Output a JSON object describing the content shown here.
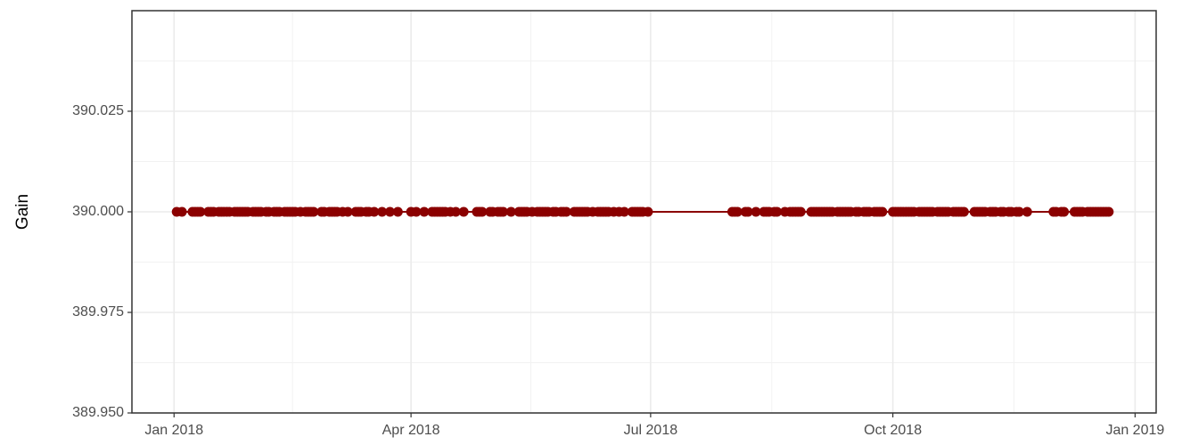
{
  "chart_data": {
    "type": "line",
    "y_label": "Gain",
    "color": "#8b0000",
    "grid": true,
    "x": [
      "2018-01-02",
      "2018-01-04",
      "2018-01-08",
      "2018-01-09",
      "2018-01-10",
      "2018-01-11",
      "2018-01-14",
      "2018-01-15",
      "2018-01-16",
      "2018-01-18",
      "2018-01-19",
      "2018-01-20",
      "2018-01-21",
      "2018-01-22",
      "2018-01-24",
      "2018-01-25",
      "2018-01-26",
      "2018-01-27",
      "2018-01-28",
      "2018-01-29",
      "2018-01-31",
      "2018-02-01",
      "2018-02-02",
      "2018-02-03",
      "2018-02-05",
      "2018-02-06",
      "2018-02-08",
      "2018-02-09",
      "2018-02-10",
      "2018-02-12",
      "2018-02-13",
      "2018-02-14",
      "2018-02-15",
      "2018-02-16",
      "2018-02-18",
      "2018-02-20",
      "2018-02-21",
      "2018-02-22",
      "2018-02-23",
      "2018-02-26",
      "2018-02-27",
      "2018-03-01",
      "2018-03-02",
      "2018-03-03",
      "2018-03-04",
      "2018-03-06",
      "2018-03-08",
      "2018-03-11",
      "2018-03-12",
      "2018-03-13",
      "2018-03-15",
      "2018-03-16",
      "2018-03-18",
      "2018-03-21",
      "2018-03-24",
      "2018-03-27",
      "2018-04-01",
      "2018-04-03",
      "2018-04-06",
      "2018-04-09",
      "2018-04-10",
      "2018-04-11",
      "2018-04-12",
      "2018-04-13",
      "2018-04-14",
      "2018-04-16",
      "2018-04-18",
      "2018-04-21",
      "2018-04-26",
      "2018-04-27",
      "2018-04-28",
      "2018-05-01",
      "2018-05-02",
      "2018-05-04",
      "2018-05-05",
      "2018-05-06",
      "2018-05-09",
      "2018-05-12",
      "2018-05-13",
      "2018-05-14",
      "2018-05-15",
      "2018-05-17",
      "2018-05-19",
      "2018-05-20",
      "2018-05-21",
      "2018-05-22",
      "2018-05-23",
      "2018-05-25",
      "2018-05-26",
      "2018-05-28",
      "2018-05-29",
      "2018-05-30",
      "2018-06-02",
      "2018-06-03",
      "2018-06-04",
      "2018-06-05",
      "2018-06-06",
      "2018-06-07",
      "2018-06-09",
      "2018-06-11",
      "2018-06-12",
      "2018-06-13",
      "2018-06-14",
      "2018-06-15",
      "2018-06-17",
      "2018-06-19",
      "2018-06-21",
      "2018-06-24",
      "2018-06-25",
      "2018-06-26",
      "2018-06-27",
      "2018-06-28",
      "2018-06-30",
      "2018-08-01",
      "2018-08-02",
      "2018-08-03",
      "2018-08-06",
      "2018-08-07",
      "2018-08-10",
      "2018-08-13",
      "2018-08-14",
      "2018-08-15",
      "2018-08-17",
      "2018-08-18",
      "2018-08-21",
      "2018-08-23",
      "2018-08-24",
      "2018-08-25",
      "2018-08-26",
      "2018-08-27",
      "2018-08-31",
      "2018-09-01",
      "2018-09-02",
      "2018-09-03",
      "2018-09-04",
      "2018-09-05",
      "2018-09-06",
      "2018-09-07",
      "2018-09-08",
      "2018-09-10",
      "2018-09-11",
      "2018-09-12",
      "2018-09-13",
      "2018-09-14",
      "2018-09-15",
      "2018-09-17",
      "2018-09-18",
      "2018-09-20",
      "2018-09-21",
      "2018-09-22",
      "2018-09-24",
      "2018-09-25",
      "2018-09-26",
      "2018-09-27",
      "2018-10-01",
      "2018-10-02",
      "2018-10-03",
      "2018-10-04",
      "2018-10-05",
      "2018-10-06",
      "2018-10-07",
      "2018-10-08",
      "2018-10-09",
      "2018-10-11",
      "2018-10-12",
      "2018-10-13",
      "2018-10-14",
      "2018-10-15",
      "2018-10-16",
      "2018-10-18",
      "2018-10-19",
      "2018-10-20",
      "2018-10-21",
      "2018-10-22",
      "2018-10-24",
      "2018-10-25",
      "2018-10-26",
      "2018-10-27",
      "2018-10-28",
      "2018-11-01",
      "2018-11-02",
      "2018-11-03",
      "2018-11-04",
      "2018-11-05",
      "2018-11-07",
      "2018-11-08",
      "2018-11-09",
      "2018-11-11",
      "2018-11-12",
      "2018-11-14",
      "2018-11-15",
      "2018-11-17",
      "2018-11-18",
      "2018-11-21",
      "2018-12-01",
      "2018-12-02",
      "2018-12-04",
      "2018-12-05",
      "2018-12-09",
      "2018-12-10",
      "2018-12-11",
      "2018-12-12",
      "2018-12-14",
      "2018-12-15",
      "2018-12-16",
      "2018-12-17",
      "2018-12-18",
      "2018-12-19",
      "2018-12-20",
      "2018-12-21",
      "2018-12-22"
    ],
    "values": [
      390,
      390,
      390,
      390,
      390,
      390,
      390,
      390,
      390,
      390,
      390,
      390,
      390,
      390,
      390,
      390,
      390,
      390,
      390,
      390,
      390,
      390,
      390,
      390,
      390,
      390,
      390,
      390,
      390,
      390,
      390,
      390,
      390,
      390,
      390,
      390,
      390,
      390,
      390,
      390,
      390,
      390,
      390,
      390,
      390,
      390,
      390,
      390,
      390,
      390,
      390,
      390,
      390,
      390,
      390,
      390,
      390,
      390,
      390,
      390,
      390,
      390,
      390,
      390,
      390,
      390,
      390,
      390,
      390,
      390,
      390,
      390,
      390,
      390,
      390,
      390,
      390,
      390,
      390,
      390,
      390,
      390,
      390,
      390,
      390,
      390,
      390,
      390,
      390,
      390,
      390,
      390,
      390,
      390,
      390,
      390,
      390,
      390,
      390,
      390,
      390,
      390,
      390,
      390,
      390,
      390,
      390,
      390,
      390,
      390,
      390,
      390,
      390,
      390,
      390,
      390,
      390,
      390,
      390,
      390,
      390,
      390,
      390,
      390,
      390,
      390,
      390,
      390,
      390,
      390,
      390,
      390,
      390,
      390,
      390,
      390,
      390,
      390,
      390,
      390,
      390,
      390,
      390,
      390,
      390,
      390,
      390,
      390,
      390,
      390,
      390,
      390,
      390,
      390,
      390,
      390,
      390,
      390,
      390,
      390,
      390,
      390,
      390,
      390,
      390,
      390,
      390,
      390,
      390,
      390,
      390,
      390,
      390,
      390,
      390,
      390,
      390,
      390,
      390,
      390,
      390,
      390,
      390,
      390,
      390,
      390,
      390,
      390,
      390,
      390,
      390,
      390,
      390,
      390,
      390,
      390,
      390,
      390,
      390,
      390,
      390,
      390,
      390,
      390,
      390,
      390,
      390,
      390,
      390,
      390,
      390
    ],
    "xlim": [
      "2017-12-16",
      "2019-01-09"
    ],
    "xticks": [
      {
        "value": "2018-01-01",
        "label": "Jan 2018"
      },
      {
        "value": "2018-04-01",
        "label": "Apr 2018"
      },
      {
        "value": "2018-07-01",
        "label": "Jul 2018"
      },
      {
        "value": "2018-10-01",
        "label": "Oct 2018"
      },
      {
        "value": "2019-01-01",
        "label": "Jan 2019"
      }
    ],
    "ylim": [
      389.95,
      390.05
    ],
    "yticks": [
      {
        "value": 389.95,
        "label": "389.950"
      },
      389.975,
      {
        "value": 390,
        "label": "390.000"
      },
      390.025
    ]
  }
}
